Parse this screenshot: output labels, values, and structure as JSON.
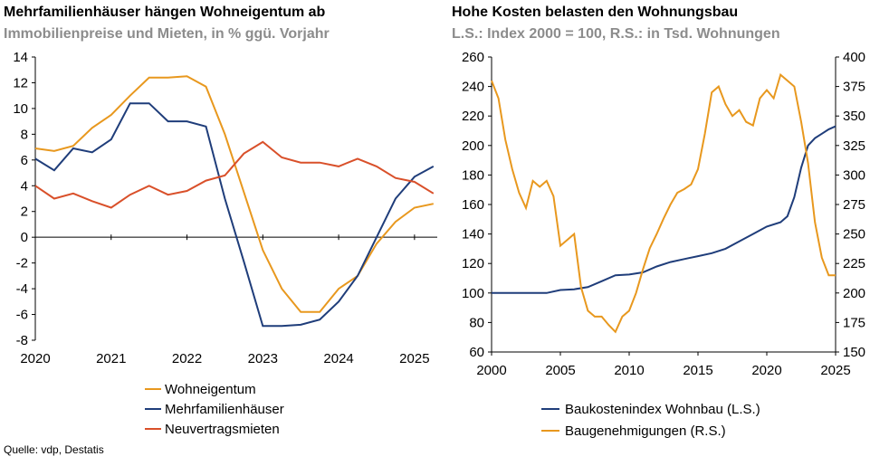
{
  "source": "Quelle: vdp, Destatis",
  "chart_data": [
    {
      "type": "line",
      "title": "Mehrfamilienhäuser hängen Wohneigentum ab",
      "subtitle": "Immobilienpreise und Mieten, in % ggü. Vorjahr",
      "xlim": [
        2020,
        2025.3
      ],
      "ylim": [
        -8,
        14
      ],
      "xticks": [
        "2020",
        "2021",
        "2022",
        "2023",
        "2024",
        "2025"
      ],
      "yticks": [
        "14",
        "12",
        "10",
        "8",
        "6",
        "4",
        "2",
        "0",
        "-2",
        "-4",
        "-6",
        "-8"
      ],
      "grid": false,
      "legend_position": "bottom",
      "colors": {
        "Wohneigentum": "#e8981e",
        "Mehrfamilienhäuser": "#1f3d7a",
        "Neuvertragsmieten": "#d9502a"
      },
      "series": [
        {
          "name": "Wohneigentum",
          "x": [
            2020,
            2020.25,
            2020.5,
            2020.75,
            2021,
            2021.25,
            2021.5,
            2021.75,
            2022,
            2022.25,
            2022.5,
            2022.75,
            2023,
            2023.25,
            2023.5,
            2023.75,
            2024,
            2024.25,
            2024.5,
            2024.75,
            2025,
            2025.25
          ],
          "values": [
            6.9,
            6.7,
            7.1,
            8.5,
            9.5,
            11.0,
            12.4,
            12.4,
            12.5,
            11.7,
            8.0,
            3.5,
            -1.0,
            -4.0,
            -5.8,
            -5.8,
            -4.0,
            -3.0,
            -0.5,
            1.2,
            2.3,
            2.6
          ]
        },
        {
          "name": "Mehrfamilienhäuser",
          "x": [
            2020,
            2020.25,
            2020.5,
            2020.75,
            2021,
            2021.25,
            2021.5,
            2021.75,
            2022,
            2022.25,
            2022.5,
            2022.75,
            2023,
            2023.25,
            2023.5,
            2023.75,
            2024,
            2024.25,
            2024.5,
            2024.75,
            2025,
            2025.25
          ],
          "values": [
            6.1,
            5.2,
            6.9,
            6.6,
            7.6,
            10.4,
            10.4,
            9.0,
            9.0,
            8.6,
            3.0,
            -1.9,
            -6.9,
            -6.9,
            -6.8,
            -6.4,
            -5.0,
            -3.0,
            0.0,
            3.0,
            4.7,
            5.5
          ]
        },
        {
          "name": "Neuvertragsmieten",
          "x": [
            2020,
            2020.25,
            2020.5,
            2020.75,
            2021,
            2021.25,
            2021.5,
            2021.75,
            2022,
            2022.25,
            2022.5,
            2022.75,
            2023,
            2023.25,
            2023.5,
            2023.75,
            2024,
            2024.25,
            2024.5,
            2024.75,
            2025,
            2025.25
          ],
          "values": [
            4.0,
            3.0,
            3.4,
            2.8,
            2.3,
            3.3,
            4.0,
            3.3,
            3.6,
            4.4,
            4.8,
            6.5,
            7.4,
            6.2,
            5.8,
            5.8,
            5.5,
            6.1,
            5.5,
            4.6,
            4.3,
            3.4
          ]
        }
      ]
    },
    {
      "type": "line",
      "title": "Hohe Kosten belasten den Wohnungsbau",
      "subtitle": "L.S.: Index 2000 = 100, R.S.: in Tsd. Wohnungen",
      "xlim": [
        2000,
        2025
      ],
      "ylim_left": [
        60,
        260
      ],
      "ylim_right": [
        150,
        400
      ],
      "xticks": [
        "2000",
        "2005",
        "2010",
        "2015",
        "2020",
        "2025"
      ],
      "yticks_left": [
        "260",
        "240",
        "220",
        "200",
        "180",
        "160",
        "140",
        "120",
        "100",
        "80",
        "60"
      ],
      "yticks_right": [
        "400",
        "375",
        "350",
        "325",
        "300",
        "275",
        "250",
        "225",
        "200",
        "175",
        "150"
      ],
      "grid": false,
      "legend_position": "bottom",
      "colors": {
        "Baukostenindex Wohnbau (L.S.)": "#1f3d7a",
        "Baugenehmigungen (R.S.)": "#e8981e"
      },
      "series": [
        {
          "name": "Baukostenindex Wohnbau (L.S.)",
          "axis": "left",
          "x": [
            2000,
            2002,
            2004,
            2005,
            2006,
            2007,
            2008,
            2009,
            2010,
            2011,
            2012,
            2013,
            2014,
            2015,
            2016,
            2017,
            2018,
            2019,
            2020,
            2021,
            2021.5,
            2022,
            2022.5,
            2023,
            2023.5,
            2024,
            2024.5,
            2025
          ],
          "values": [
            100,
            100,
            100,
            102,
            102.5,
            104,
            108,
            112,
            112.5,
            114,
            118,
            121,
            123,
            125,
            127,
            130,
            135,
            140,
            145,
            148,
            152,
            165,
            185,
            200,
            205,
            208,
            211,
            213
          ]
        },
        {
          "name": "Baugenehmigungen (R.S.)",
          "axis": "right",
          "x": [
            2000,
            2000.5,
            2001,
            2001.5,
            2002,
            2002.5,
            2003,
            2003.5,
            2004,
            2004.5,
            2005,
            2005.5,
            2006,
            2006.5,
            2007,
            2007.5,
            2008,
            2008.5,
            2009,
            2009.5,
            2010,
            2010.5,
            2011,
            2011.5,
            2012,
            2012.5,
            2013,
            2013.5,
            2014,
            2014.5,
            2015,
            2015.5,
            2016,
            2016.5,
            2017,
            2017.5,
            2018,
            2018.5,
            2019,
            2019.5,
            2020,
            2020.5,
            2021,
            2021.5,
            2022,
            2022.5,
            2023,
            2023.5,
            2024,
            2024.5,
            2025
          ],
          "values": [
            380,
            365,
            330,
            305,
            285,
            272,
            295,
            290,
            295,
            282,
            240,
            245,
            250,
            205,
            185,
            180,
            180,
            173,
            167,
            180,
            185,
            200,
            220,
            238,
            250,
            263,
            275,
            285,
            288,
            292,
            305,
            335,
            370,
            375,
            360,
            350,
            355,
            345,
            342,
            365,
            372,
            365,
            385,
            380,
            375,
            345,
            310,
            260,
            230,
            215,
            215
          ]
        }
      ]
    }
  ]
}
